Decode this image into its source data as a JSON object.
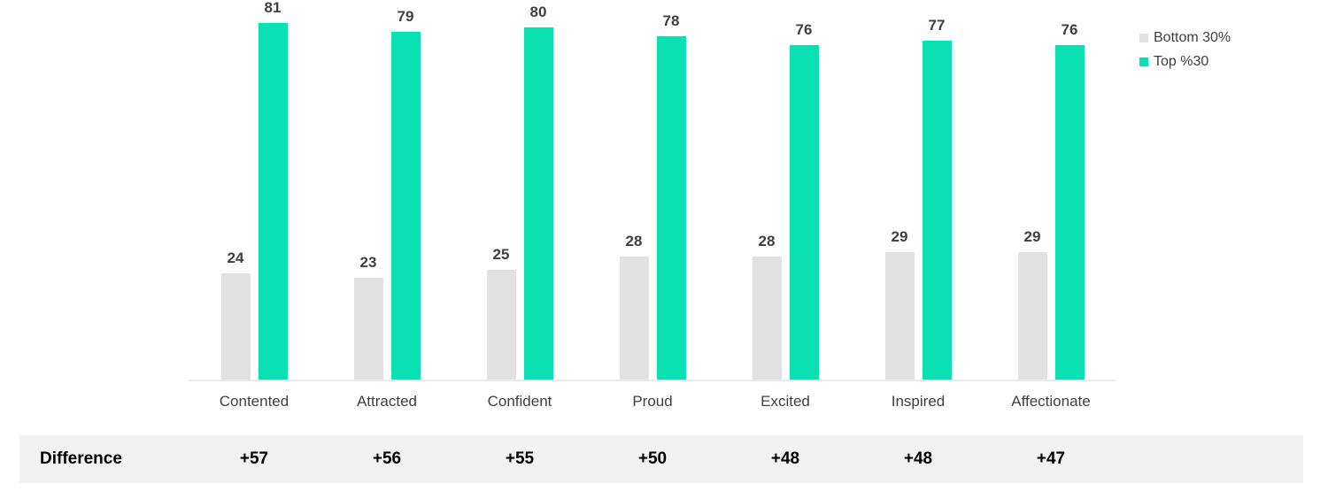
{
  "chart_data": {
    "type": "bar",
    "categories": [
      "Contented",
      "Attracted",
      "Confident",
      "Proud",
      "Excited",
      "Inspired",
      "Affectionate"
    ],
    "series": [
      {
        "name": "Bottom 30%",
        "color": "#e1e1e1",
        "values": [
          24,
          23,
          25,
          28,
          28,
          29,
          29
        ]
      },
      {
        "name": "Top %30",
        "color": "#0be0b2",
        "values": [
          81,
          79,
          80,
          78,
          76,
          77,
          76
        ]
      }
    ],
    "title": "",
    "xlabel": "",
    "ylabel": "",
    "ylim": [
      0,
      86
    ],
    "grid": false,
    "axis_visible": "x-baseline-only",
    "value_labels": true,
    "legend_position": "top-right"
  },
  "difference_row": {
    "label": "Difference",
    "values": [
      "+57",
      "+56",
      "+55",
      "+50",
      "+48",
      "+48",
      "+47"
    ]
  },
  "colors": {
    "bottom_series": "#e1e1e1",
    "top_series": "#0be0b2",
    "axis_line": "#ebebeb",
    "value_label_text": "#404040",
    "category_label_text": "#404040",
    "difference_band_bg": "#f2f2f2",
    "difference_text": "#000000"
  }
}
